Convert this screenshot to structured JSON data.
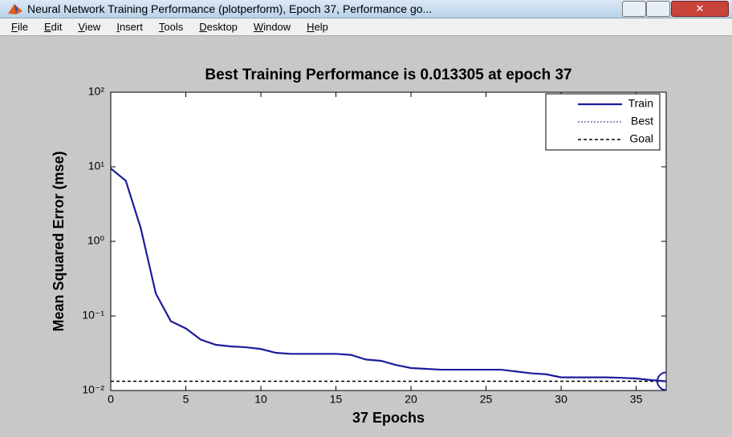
{
  "window": {
    "title": "Neural Network Training Performance (plotperform), Epoch 37, Performance go..."
  },
  "menu": [
    "File",
    "Edit",
    "View",
    "Insert",
    "Tools",
    "Desktop",
    "Window",
    "Help"
  ],
  "chart_data": {
    "type": "line",
    "title": "Best Training Performance is 0.013305 at epoch 37",
    "x_label": "37 Epochs",
    "y_label": "Mean Squared Error  (mse)",
    "x": [
      0,
      1,
      2,
      3,
      4,
      5,
      6,
      7,
      8,
      9,
      10,
      11,
      12,
      13,
      14,
      15,
      16,
      17,
      18,
      19,
      20,
      21,
      22,
      23,
      24,
      25,
      26,
      27,
      28,
      29,
      30,
      31,
      32,
      33,
      34,
      35,
      36,
      37
    ],
    "series": [
      {
        "name": "Train",
        "color": "#1c1c9c",
        "values": [
          9.5,
          6.5,
          1.5,
          0.2,
          0.085,
          0.068,
          0.048,
          0.041,
          0.039,
          0.038,
          0.036,
          0.032,
          0.031,
          0.031,
          0.031,
          0.031,
          0.03,
          0.026,
          0.025,
          0.022,
          0.02,
          0.0195,
          0.019,
          0.019,
          0.019,
          0.019,
          0.019,
          0.018,
          0.017,
          0.0165,
          0.015,
          0.015,
          0.015,
          0.015,
          0.0148,
          0.0145,
          0.0138,
          0.013305
        ]
      }
    ],
    "best": {
      "name": "Best",
      "x": 37,
      "value": 0.013305,
      "color": "#1c1c9c"
    },
    "goal": {
      "name": "Goal",
      "value": 0.0133,
      "color": "#000000"
    },
    "xlim": [
      0,
      37
    ],
    "xticks": [
      0,
      5,
      10,
      15,
      20,
      25,
      30,
      35
    ],
    "ylim": [
      0.01,
      100
    ],
    "yticks": [
      {
        "value": 100,
        "label": "10²"
      },
      {
        "value": 10,
        "label": "10¹"
      },
      {
        "value": 1,
        "label": "10⁰"
      },
      {
        "value": 0.1,
        "label": "10⁻¹"
      },
      {
        "value": 0.01,
        "label": "10⁻²"
      }
    ],
    "log_y": true,
    "legend": "upper right"
  }
}
